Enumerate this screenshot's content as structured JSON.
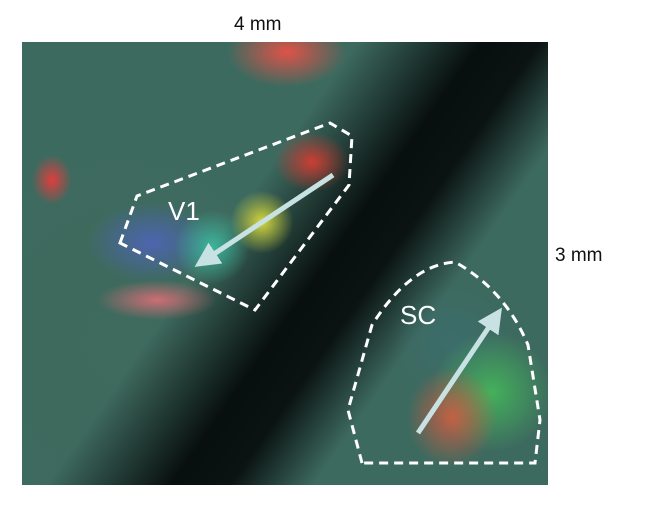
{
  "labels": {
    "width": "4 mm",
    "height": "3 mm"
  },
  "regions": [
    {
      "label": "V1",
      "outline": "dashed",
      "arrow_color": "#c8e2e4"
    },
    {
      "label": "SC",
      "outline": "dashed",
      "arrow_color": "#c8e2e4"
    }
  ]
}
